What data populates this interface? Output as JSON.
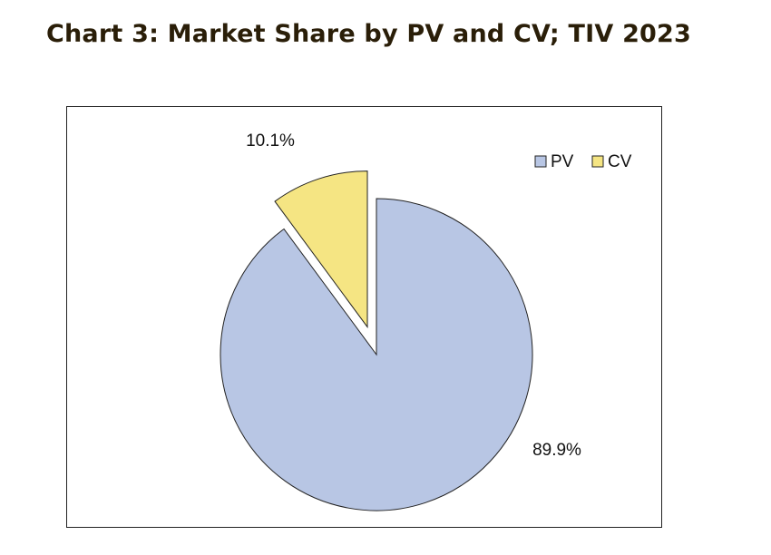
{
  "title": "Chart 3: Market Share by PV and CV; TIV 2023",
  "chart_data": {
    "type": "pie",
    "title": "Chart 3: Market Share by PV and CV; TIV 2023",
    "series": [
      {
        "name": "PV",
        "value": 89.9,
        "label": "89.9%",
        "color": "#b8c6e4"
      },
      {
        "name": "CV",
        "value": 10.1,
        "label": "10.1%",
        "color": "#f5e583"
      }
    ],
    "exploded": [
      "CV"
    ],
    "legend": {
      "position": "top-right",
      "entries": [
        "PV",
        "CV"
      ]
    },
    "grid": false
  }
}
